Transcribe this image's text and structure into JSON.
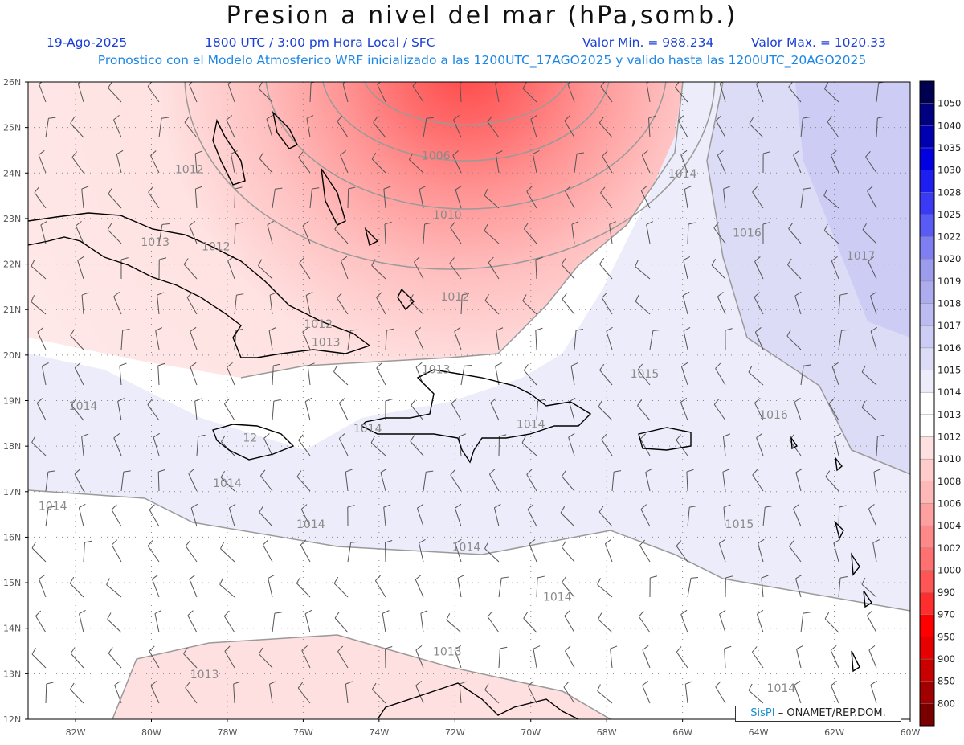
{
  "title": "Presion a nivel del mar (hPa,somb.)",
  "header": {
    "date": "19-Ago-2025",
    "time": "1800 UTC / 3:00 pm Hora Local / SFC",
    "min_label": "Valor Min. = 988.234",
    "max_label": "Valor Max. = 1020.33"
  },
  "subtitle": "Pronostico con el Modelo Atmosferico WRF inicializado a las 1200UTC_17AGO2025 y valido hasta las  1200UTC_20AGO2025",
  "credit": {
    "brand": "SisPI",
    "org": "ONAMET/REP.DOM."
  },
  "colors": {
    "title": "#111111",
    "header_text": "#1a3fd6",
    "subtitle_text": "#1c86e6",
    "coast": "#000000",
    "isobar": "#9a9a9a",
    "barb": "#555555"
  },
  "map": {
    "lat_labels": [
      "26N",
      "25N",
      "24N",
      "23N",
      "22N",
      "21N",
      "20N",
      "19N",
      "18N",
      "17N",
      "16N",
      "15N",
      "14N",
      "13N",
      "12N"
    ],
    "lon_labels": [
      "82W",
      "80W",
      "78W",
      "76W",
      "74W",
      "72W",
      "70W",
      "68W",
      "66W",
      "64W",
      "62W",
      "60W"
    ],
    "isobar_labels": [
      {
        "text": "1006",
        "lon": -72.5,
        "lat": 24.3
      },
      {
        "text": "1010",
        "lon": -72.2,
        "lat": 23.0
      },
      {
        "text": "1012",
        "lon": -79.0,
        "lat": 24.0
      },
      {
        "text": "1012",
        "lon": -78.3,
        "lat": 22.3
      },
      {
        "text": "1012",
        "lon": -72.0,
        "lat": 21.2
      },
      {
        "text": "1012",
        "lon": -75.6,
        "lat": 20.6
      },
      {
        "text": "1013",
        "lon": -79.9,
        "lat": 22.4
      },
      {
        "text": "1013",
        "lon": -75.4,
        "lat": 20.2
      },
      {
        "text": "1013",
        "lon": -72.5,
        "lat": 19.6
      },
      {
        "text": "1013",
        "lon": -72.2,
        "lat": 13.4
      },
      {
        "text": "1013",
        "lon": -78.6,
        "lat": 12.9
      },
      {
        "text": "1014",
        "lon": -66.0,
        "lat": 23.9
      },
      {
        "text": "1014",
        "lon": -81.8,
        "lat": 18.8
      },
      {
        "text": "1014",
        "lon": -78.0,
        "lat": 17.1
      },
      {
        "text": "1014",
        "lon": -82.6,
        "lat": 16.6
      },
      {
        "text": "1014",
        "lon": -75.8,
        "lat": 16.2
      },
      {
        "text": "1014",
        "lon": -71.7,
        "lat": 15.7
      },
      {
        "text": "1014",
        "lon": -69.3,
        "lat": 14.6
      },
      {
        "text": "1014",
        "lon": -63.4,
        "lat": 12.6
      },
      {
        "text": "1014",
        "lon": -70.0,
        "lat": 18.4
      },
      {
        "text": "1014",
        "lon": -74.3,
        "lat": 18.3
      },
      {
        "text": "1015",
        "lon": -67.0,
        "lat": 19.5
      },
      {
        "text": "1015",
        "lon": -64.5,
        "lat": 16.2
      },
      {
        "text": "1016",
        "lon": -64.3,
        "lat": 22.6
      },
      {
        "text": "1016",
        "lon": -63.6,
        "lat": 18.6
      },
      {
        "text": "1017",
        "lon": -61.3,
        "lat": 22.1
      },
      {
        "text": "12",
        "lon": -77.4,
        "lat": 18.1
      }
    ]
  },
  "colorbar": {
    "levels": [
      "800",
      "850",
      "900",
      "950",
      "970",
      "990",
      "1000",
      "1002",
      "1004",
      "1006",
      "1008",
      "1010",
      "1012",
      "1013",
      "1014",
      "1015",
      "1016",
      "1017",
      "1018",
      "1019",
      "1020",
      "1022",
      "1025",
      "1028",
      "1030",
      "1035",
      "1040",
      "1050"
    ],
    "colors": [
      "#7a0000",
      "#a00000",
      "#c80000",
      "#e60000",
      "#ff0000",
      "#ff2e2e",
      "#ff5555",
      "#ff7070",
      "#ff8888",
      "#ffa0a0",
      "#ffb8b8",
      "#ffcccc",
      "#ffe0e0",
      "#ffffff",
      "#ffffff",
      "#ececfa",
      "#dcdcf7",
      "#ccccf5",
      "#bcbcf2",
      "#acacef",
      "#9c9cec",
      "#7f7ff2",
      "#5a5af5",
      "#3a3af5",
      "#1e1ef0",
      "#0000e0",
      "#0000b0",
      "#000080",
      "#000050"
    ]
  }
}
